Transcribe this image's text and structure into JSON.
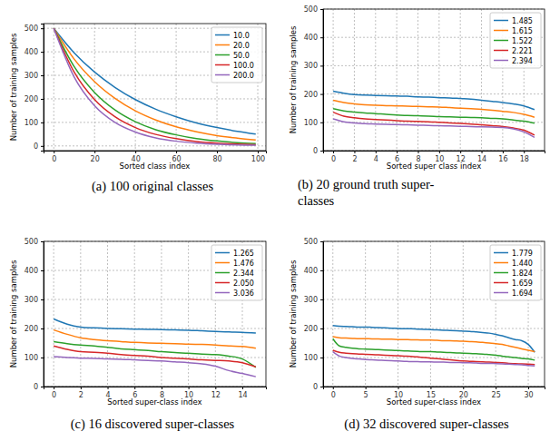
{
  "chart_data": [
    {
      "type": "line",
      "title": [
        "(a) 100 original classes"
      ],
      "x_label": "Sorted class index",
      "y_label": "Number of training samples",
      "x": [
        0,
        10,
        20,
        30,
        40,
        50,
        60,
        70,
        80,
        90,
        99
      ],
      "xlim": [
        -5,
        104
      ],
      "xticks": [
        0,
        20,
        40,
        60,
        80,
        100
      ],
      "ylim": [
        -20,
        520
      ],
      "yticks": [
        0,
        100,
        200,
        300,
        400,
        500
      ],
      "grid": true,
      "legend": "upper right",
      "series": [
        {
          "name": "10.0",
          "color": "#1f77b4",
          "values": [
            500,
            396,
            314,
            249,
            197,
            156,
            124,
            98,
            78,
            62,
            50
          ]
        },
        {
          "name": "20.0",
          "color": "#ff7f0e",
          "values": [
            500,
            369,
            273,
            202,
            149,
            110,
            81,
            60,
            44,
            33,
            25
          ]
        },
        {
          "name": "50.0",
          "color": "#2ca02c",
          "values": [
            500,
            337,
            227,
            153,
            103,
            69,
            47,
            31,
            21,
            14,
            10
          ]
        },
        {
          "name": "100.0",
          "color": "#d62728",
          "values": [
            500,
            314,
            197,
            124,
            78,
            49,
            31,
            19,
            12,
            8,
            5
          ]
        },
        {
          "name": "200.0",
          "color": "#9467bd",
          "values": [
            500,
            293,
            171,
            100,
            59,
            34,
            20,
            12,
            7,
            4,
            3
          ]
        }
      ]
    },
    {
      "type": "line",
      "title": [
        "(b) 20 ground truth super-",
        "classes"
      ],
      "x_label": "Sorted super class index",
      "y_label": "Number of training samples",
      "x": [
        0,
        1,
        2,
        3,
        4,
        5,
        6,
        7,
        8,
        9,
        10,
        11,
        12,
        13,
        14,
        15,
        16,
        17,
        18,
        19
      ],
      "xlim": [
        -0.95,
        19.95
      ],
      "xticks": [
        0,
        2,
        4,
        6,
        8,
        10,
        12,
        14,
        16,
        18
      ],
      "ylim": [
        0,
        500
      ],
      "yticks": [
        0,
        100,
        200,
        300,
        400,
        500
      ],
      "grid": true,
      "legend": "upper right",
      "series": [
        {
          "name": "1.485",
          "color": "#1f77b4",
          "values": [
            210,
            203,
            198,
            196,
            195,
            194,
            193,
            192,
            190,
            189,
            187,
            186,
            184,
            182,
            178,
            174,
            170,
            165,
            158,
            145
          ]
        },
        {
          "name": "1.615",
          "color": "#ff7f0e",
          "values": [
            178,
            170,
            165,
            162,
            160,
            159,
            158,
            157,
            156,
            155,
            154,
            152,
            150,
            148,
            146,
            143,
            139,
            135,
            128,
            118
          ]
        },
        {
          "name": "1.522",
          "color": "#2ca02c",
          "values": [
            148,
            140,
            136,
            133,
            131,
            128,
            126,
            124,
            123,
            122,
            120,
            119,
            118,
            117,
            116,
            114,
            112,
            108,
            104,
            97
          ]
        },
        {
          "name": "2.221",
          "color": "#d62728",
          "values": [
            136,
            122,
            116,
            112,
            110,
            108,
            106,
            104,
            103,
            102,
            100,
            98,
            96,
            94,
            91,
            88,
            85,
            80,
            72,
            55
          ]
        },
        {
          "name": "2.394",
          "color": "#9467bd",
          "values": [
            112,
            102,
            98,
            95,
            94,
            93,
            92,
            91,
            90,
            89,
            88,
            87,
            86,
            85,
            84,
            83,
            82,
            77,
            66,
            47
          ]
        }
      ]
    },
    {
      "type": "line",
      "title": [
        "(c) 16 discovered super-classes"
      ],
      "x_label": "Sorted super-class index",
      "y_label": "Number of training samples",
      "x": [
        0,
        1,
        2,
        3,
        4,
        5,
        6,
        7,
        8,
        9,
        10,
        11,
        12,
        13,
        14,
        15
      ],
      "xlim": [
        -0.75,
        15.75
      ],
      "xticks": [
        0,
        2,
        4,
        6,
        8,
        10,
        12,
        14
      ],
      "ylim": [
        0,
        500
      ],
      "yticks": [
        0,
        100,
        200,
        300,
        400,
        500
      ],
      "grid": true,
      "legend": "upper right",
      "series": [
        {
          "name": "1.265",
          "color": "#1f77b4",
          "values": [
            233,
            215,
            205,
            202,
            200,
            199,
            198,
            197,
            196,
            195,
            194,
            192,
            190,
            188,
            187,
            184
          ]
        },
        {
          "name": "1.476",
          "color": "#ff7f0e",
          "values": [
            195,
            180,
            168,
            162,
            158,
            155,
            152,
            150,
            149,
            148,
            146,
            145,
            143,
            140,
            138,
            132
          ]
        },
        {
          "name": "2.344",
          "color": "#2ca02c",
          "values": [
            155,
            148,
            143,
            140,
            135,
            130,
            127,
            124,
            120,
            117,
            115,
            112,
            110,
            105,
            95,
            66
          ]
        },
        {
          "name": "2.050",
          "color": "#d62728",
          "values": [
            140,
            128,
            120,
            118,
            115,
            110,
            107,
            105,
            100,
            98,
            95,
            92,
            90,
            88,
            82,
            68
          ]
        },
        {
          "name": "3.036",
          "color": "#9467bd",
          "values": [
            103,
            100,
            98,
            97,
            95,
            94,
            92,
            90,
            88,
            85,
            82,
            78,
            70,
            55,
            45,
            34
          ]
        }
      ]
    },
    {
      "type": "line",
      "title": [
        "(d) 32 discovered super-classes"
      ],
      "x_label": "Sorted super-class index",
      "y_label": "Number of training samples",
      "x": [
        0,
        1,
        2,
        3,
        4,
        5,
        6,
        7,
        8,
        9,
        10,
        11,
        12,
        13,
        14,
        15,
        16,
        17,
        18,
        19,
        20,
        21,
        22,
        23,
        24,
        25,
        26,
        27,
        28,
        29,
        30,
        31
      ],
      "xlim": [
        -1.5,
        32.5
      ],
      "xticks": [
        0,
        5,
        10,
        15,
        20,
        25,
        30
      ],
      "ylim": [
        0,
        500
      ],
      "yticks": [
        0,
        100,
        200,
        300,
        400,
        500
      ],
      "grid": true,
      "legend": "upper right",
      "series": [
        {
          "name": "1.779",
          "color": "#1f77b4",
          "values": [
            210,
            208,
            207,
            206,
            205,
            205,
            204,
            203,
            202,
            201,
            200,
            199,
            199,
            198,
            197,
            196,
            195,
            194,
            193,
            192,
            191,
            190,
            188,
            186,
            184,
            180,
            175,
            168,
            162,
            158,
            145,
            118
          ]
        },
        {
          "name": "1.440",
          "color": "#ff7f0e",
          "values": [
            172,
            168,
            167,
            166,
            165,
            165,
            164,
            164,
            163,
            163,
            162,
            162,
            161,
            161,
            160,
            160,
            159,
            158,
            158,
            157,
            156,
            155,
            154,
            152,
            150,
            148,
            145,
            140,
            135,
            130,
            125,
            120
          ]
        },
        {
          "name": "1.824",
          "color": "#2ca02c",
          "values": [
            165,
            140,
            135,
            132,
            130,
            129,
            128,
            127,
            126,
            125,
            124,
            123,
            122,
            121,
            120,
            120,
            119,
            118,
            117,
            116,
            115,
            114,
            113,
            112,
            110,
            108,
            105,
            102,
            100,
            97,
            95,
            91
          ]
        },
        {
          "name": "1.659",
          "color": "#d62728",
          "values": [
            125,
            118,
            115,
            113,
            112,
            111,
            110,
            109,
            108,
            107,
            106,
            105,
            104,
            102,
            100,
            98,
            96,
            94,
            92,
            90,
            88,
            87,
            86,
            85,
            84,
            83,
            82,
            80,
            79,
            78,
            77,
            76
          ]
        },
        {
          "name": "1.694",
          "color": "#9467bd",
          "values": [
            120,
            105,
            100,
            97,
            95,
            93,
            92,
            91,
            90,
            89,
            88,
            87,
            86,
            86,
            85,
            85,
            84,
            84,
            83,
            83,
            82,
            82,
            81,
            80,
            80,
            79,
            78,
            77,
            76,
            75,
            73,
            71
          ]
        }
      ]
    }
  ]
}
